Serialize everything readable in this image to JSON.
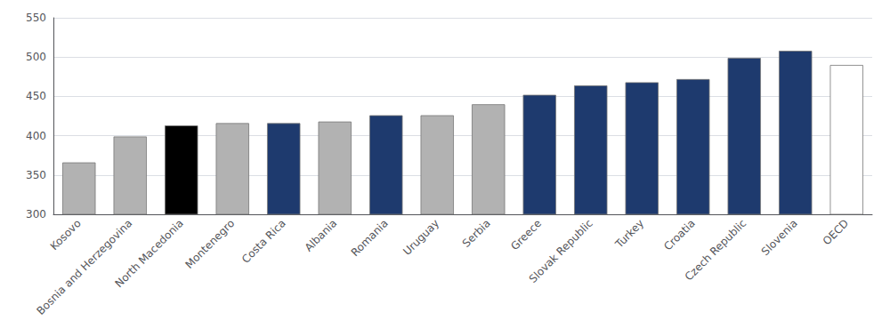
{
  "chart_data": {
    "type": "bar",
    "categories": [
      "Kosovo",
      "Bosnia and Herzegovina",
      "North Macedonia",
      "Montenegro",
      "Costa Rica",
      "Albania",
      "Romania",
      "Uruguay",
      "Serbia",
      "Greece",
      "Slovak Republic",
      "Turkey",
      "Croatia",
      "Czech Republic",
      "Slovenia",
      "OECD"
    ],
    "values": [
      366,
      399,
      413,
      416,
      416,
      418,
      426,
      426,
      440,
      452,
      464,
      468,
      472,
      499,
      508,
      490
    ],
    "colors": [
      "#b2b2b2",
      "#b2b2b2",
      "#000000",
      "#b2b2b2",
      "#1e3a6e",
      "#b2b2b2",
      "#1e3a6e",
      "#b2b2b2",
      "#b2b2b2",
      "#1e3a6e",
      "#1e3a6e",
      "#1e3a6e",
      "#1e3a6e",
      "#1e3a6e",
      "#1e3a6e",
      "#ffffff"
    ],
    "ylim": [
      300,
      550
    ],
    "yticks": [
      300,
      350,
      400,
      450,
      500,
      550
    ],
    "grid": true
  }
}
